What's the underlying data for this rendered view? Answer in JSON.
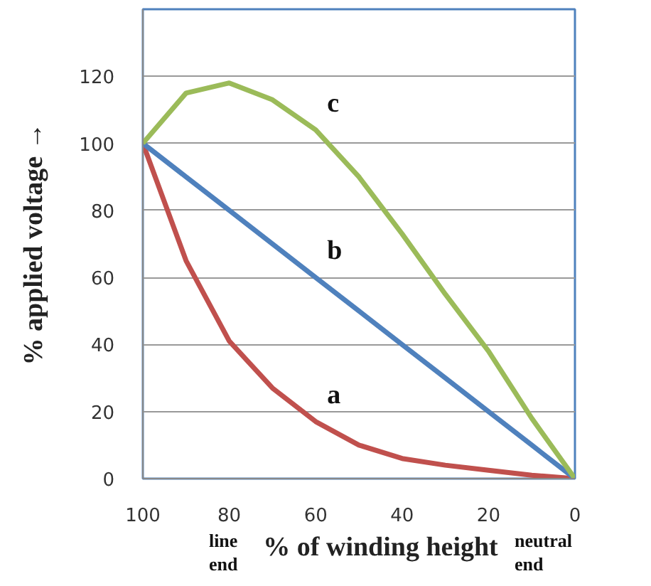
{
  "chart_data": {
    "type": "line",
    "xlabel": "% of winding height",
    "ylabel": "% applied voltage →",
    "x": [
      100,
      90,
      80,
      70,
      60,
      50,
      40,
      30,
      20,
      10,
      0
    ],
    "series": [
      {
        "name": "a",
        "color": "#c0504d",
        "values": [
          100,
          65,
          41,
          27,
          17,
          10,
          6,
          4,
          2.5,
          1,
          0
        ]
      },
      {
        "name": "b",
        "color": "#4f81bd",
        "values": [
          100,
          90,
          80,
          70,
          60,
          50,
          40,
          30,
          20,
          10,
          0
        ]
      },
      {
        "name": "c",
        "color": "#9bbb59",
        "values": [
          100,
          115,
          118,
          113,
          104,
          90,
          73,
          55,
          38,
          18,
          0
        ]
      }
    ],
    "xlim": [
      100,
      0
    ],
    "ylim": [
      0,
      140
    ],
    "xticks": [
      100,
      80,
      60,
      40,
      20,
      0
    ],
    "yticks": [
      0,
      20,
      40,
      60,
      80,
      100,
      120
    ],
    "grid": "y",
    "legend": false,
    "marker": "none",
    "line_style": "solid",
    "annotations": [
      "line end",
      "neutral end"
    ]
  }
}
